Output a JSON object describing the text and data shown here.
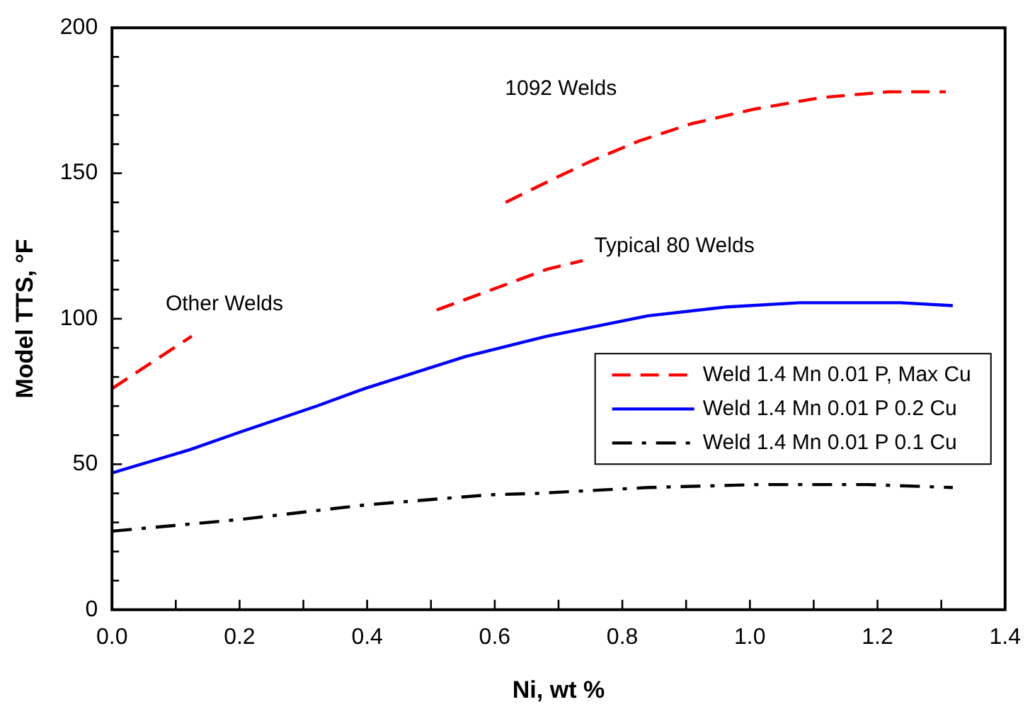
{
  "chart_data": {
    "type": "line",
    "xlabel": "Ni, wt %",
    "ylabel": "Model TTS, °F",
    "xlim": [
      0,
      1.4
    ],
    "xticks": [
      {
        "value": 0,
        "label": "0.0"
      },
      {
        "value": 0.2,
        "label": "0.2"
      },
      {
        "value": 0.4,
        "label": "0.4"
      },
      {
        "value": 0.6,
        "label": "0.6"
      },
      {
        "value": 0.8,
        "label": "0.8"
      },
      {
        "value": 1,
        "label": "1.0"
      },
      {
        "value": 1.2,
        "label": "1.2"
      },
      {
        "value": 1.4,
        "label": "1.4"
      }
    ],
    "ylim": [
      0,
      200
    ],
    "yticks": [
      0,
      50,
      100,
      150,
      200
    ],
    "grid": false,
    "legend": "right",
    "marker": "none",
    "series": [
      {
        "name": "Weld 1.4 Mn 0.01 P, Max Cu",
        "color": "#ff0000",
        "line_style": "dashed",
        "x": [
          0,
          0.125,
          0.3,
          0.509,
          0.682,
          0.738,
          0.7,
          0.617,
          0.682,
          0.749,
          0.825,
          0.908,
          1.006,
          1.111,
          1.217,
          1.307
        ],
        "values": [
          76,
          94,
          null,
          103,
          117,
          120,
          null,
          140,
          147,
          154,
          161,
          167,
          172,
          176,
          178,
          178
        ]
      },
      {
        "name": "Weld 1.4 Mn 0.01 P 0.2 Cu",
        "color": "#0000ff",
        "line_style": "solid",
        "x": [
          0,
          0.122,
          0.2,
          0.321,
          0.396,
          0.554,
          0.682,
          0.84,
          0.961,
          1.078,
          1.236,
          1.318
        ],
        "values": [
          47,
          55,
          61,
          70,
          76,
          87,
          94,
          101,
          104,
          105.5,
          105.5,
          104.5
        ]
      },
      {
        "name": "Weld 1.4 Mn 0.01 P 0.1 Cu",
        "color": "#000000",
        "line_style": "dashdot",
        "x": [
          0,
          0.2,
          0.396,
          0.592,
          0.667,
          0.84,
          1.013,
          1.186,
          1.318
        ],
        "values": [
          27,
          31,
          36,
          39.5,
          40,
          42,
          43,
          43,
          42
        ]
      }
    ],
    "annotations": [
      "Other Welds",
      "1092 Welds",
      "Typical 80 Welds"
    ]
  }
}
